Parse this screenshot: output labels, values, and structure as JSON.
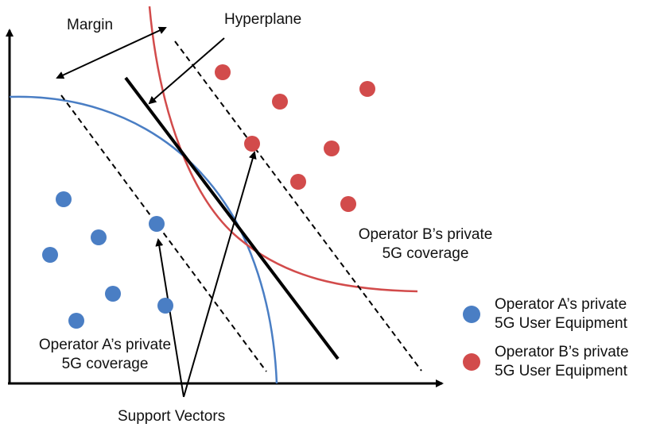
{
  "labels": {
    "margin": "Margin",
    "hyperplane": "Hyperplane",
    "support_vectors": "Support Vectors",
    "coverage_a_line1": "Operator A’s private",
    "coverage_a_line2": "5G coverage",
    "coverage_b_line1": "Operator B’s private",
    "coverage_b_line2": "5G coverage"
  },
  "legend": [
    {
      "line1": "Operator A’s private",
      "line2": "5G User Equipment",
      "color": "#4a7ec4"
    },
    {
      "line1": "Operator B’s private",
      "line2": "5G User Equipment",
      "color": "#d24b4b"
    }
  ],
  "colors": {
    "operator_a": "#4a7ec4",
    "operator_b": "#d24b4b",
    "axis": "#000000"
  }
}
